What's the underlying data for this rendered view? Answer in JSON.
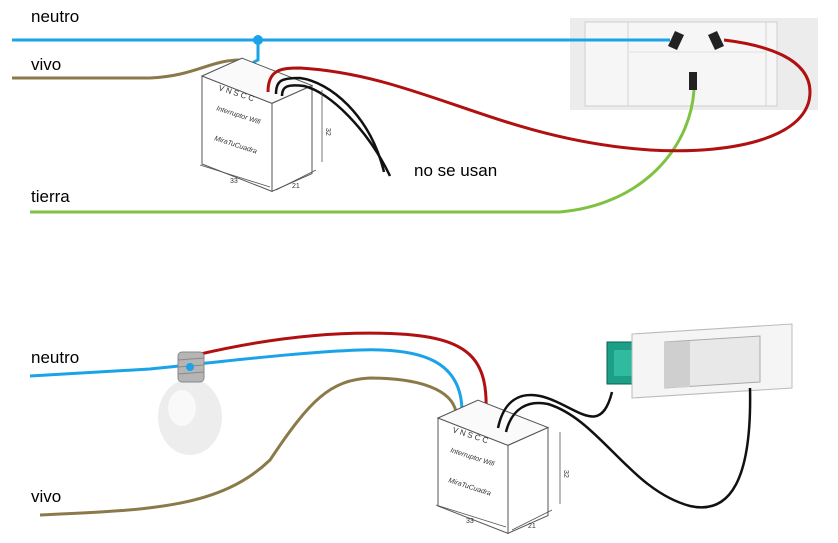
{
  "top": {
    "labels": {
      "neutro": "neutro",
      "vivo": "vivo",
      "tierra": "tierra",
      "unused": "no se usan"
    },
    "module": {
      "pins": [
        "V",
        "N",
        "S",
        "C",
        "C"
      ],
      "name": "Interruptor Wifi",
      "brand": "MiraTuCuadra",
      "dims": [
        "33",
        "21",
        "32"
      ]
    }
  },
  "bottom": {
    "labels": {
      "neutro": "neutro",
      "vivo": "vivo"
    },
    "module": {
      "pins": [
        "V",
        "N",
        "S",
        "C",
        "C"
      ],
      "name": "Interruptor Wifi",
      "brand": "MiraTuCuadra",
      "dims": [
        "33",
        "21",
        "32"
      ]
    }
  },
  "colors": {
    "neutral": "#1aa3e8",
    "live": "#8a7a4a",
    "earth": "#7fc241",
    "red": "#b01010",
    "black": "#111111"
  }
}
